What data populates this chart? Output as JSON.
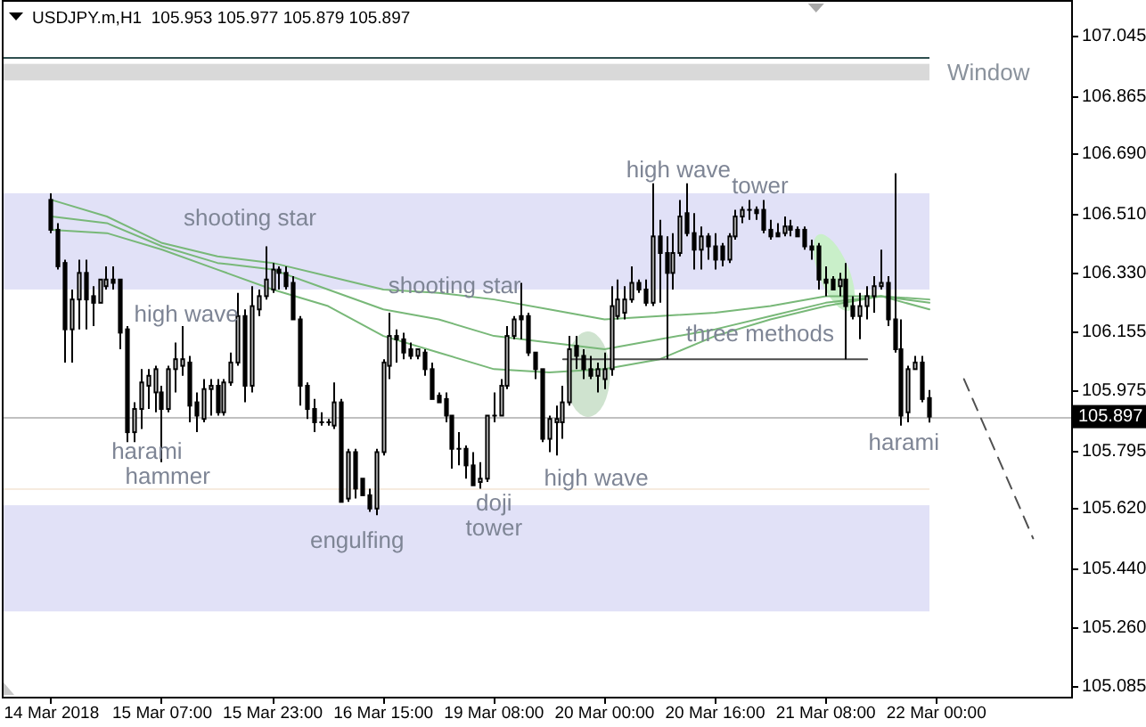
{
  "chart_data": {
    "type": "candlestick",
    "title": "USDJPY.m,H1  105.953 105.977 105.879 105.897",
    "categories": [
      "14 Mar 2018",
      null,
      null,
      null,
      null,
      null,
      null,
      null,
      null,
      null,
      null,
      null,
      null,
      null,
      null,
      null,
      "15 Mar 07:00",
      null,
      null,
      null,
      null,
      null,
      null,
      null,
      null,
      null,
      null,
      null,
      null,
      null,
      null,
      null,
      "15 Mar 23:00",
      null,
      null,
      null,
      null,
      null,
      null,
      null,
      null,
      null,
      null,
      null,
      null,
      null,
      null,
      null,
      "16 Mar 15:00",
      null,
      null,
      null,
      null,
      null,
      null,
      null,
      null,
      null,
      null,
      null,
      null,
      null,
      null,
      null,
      "19 Mar 08:00",
      null,
      null,
      null,
      null,
      null,
      null,
      null,
      null,
      null,
      null,
      null,
      null,
      null,
      null,
      null,
      "20 Mar 00:00",
      null,
      null,
      null,
      null,
      null,
      null,
      null,
      null,
      null,
      null,
      null,
      null,
      null,
      null,
      null,
      "20 Mar 16:00",
      null,
      null,
      null,
      null,
      null,
      null,
      null,
      null,
      null,
      null,
      null,
      null,
      null,
      null,
      null,
      "21 Mar 08:00",
      null,
      null,
      null,
      null,
      null,
      null,
      null,
      null,
      null,
      null,
      null,
      null,
      null,
      null,
      null,
      "22 Mar 00:00",
      null,
      null,
      null,
      null,
      null,
      null,
      null,
      null,
      null,
      null,
      null,
      null,
      null,
      null,
      null,
      null,
      null,
      null,
      null
    ],
    "ohlc": [
      [
        106.55,
        106.57,
        106.45,
        106.46
      ],
      [
        106.46,
        106.48,
        106.34,
        106.35
      ],
      [
        106.36,
        106.37,
        106.06,
        106.16
      ],
      [
        106.16,
        106.28,
        106.06,
        106.25
      ],
      [
        106.25,
        106.37,
        106.16,
        106.33
      ],
      [
        106.33,
        106.37,
        106.16,
        106.25
      ],
      [
        106.26,
        106.29,
        106.17,
        106.24
      ],
      [
        106.24,
        106.31,
        106.24,
        106.31
      ],
      [
        106.29,
        106.35,
        106.28,
        106.31
      ],
      [
        106.31,
        106.35,
        106.28,
        106.3
      ],
      [
        106.31,
        106.31,
        106.1,
        106.15
      ],
      [
        106.16,
        106.17,
        105.82,
        105.85
      ],
      [
        105.85,
        105.94,
        105.82,
        105.92
      ],
      [
        105.92,
        106.04,
        105.86,
        106.0
      ],
      [
        105.99,
        106.04,
        105.92,
        106.02
      ],
      [
        105.97,
        106.05,
        105.91,
        106.04
      ],
      [
        105.97,
        105.99,
        105.76,
        105.92
      ],
      [
        105.92,
        106.05,
        105.91,
        106.04
      ],
      [
        106.04,
        106.12,
        105.97,
        106.07
      ],
      [
        106.05,
        106.17,
        106.02,
        106.07
      ],
      [
        106.06,
        106.08,
        105.88,
        105.93
      ],
      [
        105.94,
        105.97,
        105.85,
        105.9
      ],
      [
        105.89,
        106.01,
        105.88,
        105.98
      ],
      [
        105.98,
        106.01,
        105.9,
        105.99
      ],
      [
        105.99,
        106.01,
        105.9,
        105.91
      ],
      [
        105.91,
        106.01,
        105.9,
        106.0
      ],
      [
        106.0,
        106.09,
        105.99,
        106.06
      ],
      [
        106.06,
        106.27,
        106.05,
        106.2
      ],
      [
        106.2,
        106.22,
        105.94,
        105.99
      ],
      [
        105.99,
        106.29,
        105.97,
        106.23
      ],
      [
        106.22,
        106.28,
        106.2,
        106.26
      ],
      [
        106.26,
        106.41,
        106.25,
        106.31
      ],
      [
        106.28,
        106.36,
        106.27,
        106.34
      ],
      [
        106.34,
        106.35,
        106.28,
        106.33
      ],
      [
        106.33,
        106.35,
        106.28,
        106.29
      ],
      [
        106.3,
        106.32,
        106.19,
        106.19
      ],
      [
        106.19,
        106.2,
        105.93,
        105.99
      ],
      [
        105.99,
        106.0,
        105.89,
        105.92
      ],
      [
        105.92,
        105.95,
        105.85,
        105.88
      ],
      [
        105.88,
        105.91,
        105.87,
        105.88
      ],
      [
        105.88,
        105.89,
        105.87,
        105.88
      ],
      [
        105.87,
        106.0,
        105.86,
        105.94
      ],
      [
        105.94,
        105.95,
        105.64,
        105.64
      ],
      [
        105.65,
        105.8,
        105.64,
        105.79
      ],
      [
        105.79,
        105.8,
        105.65,
        105.68
      ],
      [
        105.71,
        105.71,
        105.66,
        105.66
      ],
      [
        105.66,
        105.68,
        105.61,
        105.62
      ],
      [
        105.62,
        105.8,
        105.6,
        105.79
      ],
      [
        105.79,
        106.07,
        105.78,
        106.06
      ],
      [
        106.05,
        106.21,
        106.01,
        106.14
      ],
      [
        106.14,
        106.16,
        106.06,
        106.13
      ],
      [
        106.13,
        106.15,
        106.07,
        106.09
      ],
      [
        106.1,
        106.12,
        106.07,
        106.08
      ],
      [
        106.08,
        106.1,
        106.07,
        106.1
      ],
      [
        106.09,
        106.1,
        106.02,
        106.04
      ],
      [
        106.04,
        106.06,
        105.95,
        105.95
      ],
      [
        105.96,
        105.97,
        105.94,
        105.94
      ],
      [
        105.95,
        105.97,
        105.88,
        105.9
      ],
      [
        105.9,
        105.9,
        105.74,
        105.8
      ],
      [
        105.8,
        105.85,
        105.75,
        105.8
      ],
      [
        105.8,
        105.81,
        105.71,
        105.75
      ],
      [
        105.75,
        105.79,
        105.69,
        105.69
      ],
      [
        105.7,
        105.76,
        105.68,
        105.71
      ],
      [
        105.71,
        105.9,
        105.7,
        105.9
      ],
      [
        105.9,
        105.97,
        105.88,
        105.9
      ],
      [
        105.9,
        106.01,
        105.9,
        105.99
      ],
      [
        105.99,
        106.17,
        105.98,
        106.14
      ],
      [
        106.14,
        106.2,
        106.13,
        106.19
      ],
      [
        106.2,
        106.3,
        106.13,
        106.19
      ],
      [
        106.2,
        106.21,
        106.08,
        106.09
      ],
      [
        106.09,
        106.09,
        106.01,
        106.04
      ],
      [
        106.04,
        106.04,
        105.82,
        105.83
      ],
      [
        105.83,
        105.9,
        105.79,
        105.89
      ],
      [
        105.88,
        105.93,
        105.78,
        105.89
      ],
      [
        105.88,
        105.99,
        105.83,
        105.94
      ],
      [
        105.94,
        106.14,
        105.93,
        106.1
      ],
      [
        106.11,
        106.14,
        106.04,
        106.08
      ],
      [
        106.08,
        106.1,
        106.01,
        106.04
      ],
      [
        106.04,
        106.08,
        106.01,
        106.02
      ],
      [
        106.02,
        106.06,
        105.97,
        106.04
      ],
      [
        106.01,
        106.09,
        105.98,
        106.04
      ],
      [
        106.04,
        106.29,
        106.02,
        106.23
      ],
      [
        106.2,
        106.31,
        106.19,
        106.25
      ],
      [
        106.21,
        106.29,
        106.19,
        106.25
      ],
      [
        106.25,
        106.35,
        106.24,
        106.3
      ],
      [
        106.3,
        106.31,
        106.27,
        106.28
      ],
      [
        106.28,
        106.31,
        106.23,
        106.24
      ],
      [
        106.24,
        106.6,
        106.23,
        106.44
      ],
      [
        106.44,
        106.49,
        106.24,
        106.39
      ],
      [
        106.39,
        106.44,
        106.07,
        106.33
      ],
      [
        106.33,
        106.45,
        106.28,
        106.39
      ],
      [
        106.39,
        106.55,
        106.38,
        106.5
      ],
      [
        106.51,
        106.6,
        106.44,
        106.45
      ],
      [
        106.45,
        106.51,
        106.34,
        106.4
      ],
      [
        106.4,
        106.47,
        106.34,
        106.44
      ],
      [
        106.44,
        106.45,
        106.37,
        106.41
      ],
      [
        106.41,
        106.45,
        106.34,
        106.37
      ],
      [
        106.41,
        106.42,
        106.35,
        106.37
      ],
      [
        106.37,
        106.45,
        106.36,
        106.44
      ],
      [
        106.44,
        106.52,
        106.43,
        106.5
      ],
      [
        106.5,
        106.53,
        106.48,
        106.52
      ],
      [
        106.52,
        106.55,
        106.49,
        106.52
      ],
      [
        106.52,
        106.53,
        106.49,
        106.51
      ],
      [
        106.52,
        106.55,
        106.45,
        106.46
      ],
      [
        106.46,
        106.49,
        106.43,
        106.44
      ],
      [
        106.45,
        106.48,
        106.44,
        106.44
      ],
      [
        106.45,
        106.5,
        106.44,
        106.47
      ],
      [
        106.47,
        106.49,
        106.44,
        106.46
      ],
      [
        106.46,
        106.47,
        106.44,
        106.44
      ],
      [
        106.46,
        106.47,
        106.4,
        106.41
      ],
      [
        106.41,
        106.43,
        106.37,
        106.4
      ],
      [
        106.41,
        106.42,
        106.28,
        106.31
      ],
      [
        106.31,
        106.35,
        106.26,
        106.3
      ],
      [
        106.31,
        106.32,
        106.28,
        106.28
      ],
      [
        106.29,
        106.33,
        106.26,
        106.31
      ],
      [
        106.31,
        106.36,
        106.07,
        106.23
      ],
      [
        106.23,
        106.26,
        106.19,
        106.2
      ],
      [
        106.2,
        106.27,
        106.13,
        106.23
      ],
      [
        106.23,
        106.29,
        106.19,
        106.26
      ],
      [
        106.26,
        106.32,
        106.21,
        106.29
      ],
      [
        106.29,
        106.4,
        106.28,
        106.3
      ],
      [
        106.3,
        106.32,
        106.17,
        106.19
      ],
      [
        106.19,
        106.63,
        106.09,
        106.1
      ],
      [
        106.1,
        106.19,
        105.87,
        105.9
      ],
      [
        105.91,
        106.05,
        105.88,
        106.04
      ],
      [
        106.04,
        106.08,
        106.04,
        106.06
      ],
      [
        106.06,
        106.08,
        105.94,
        105.95
      ],
      [
        105.953,
        105.977,
        105.879,
        105.897
      ],
      null,
      null,
      null,
      null,
      null,
      null,
      null,
      null,
      null,
      null,
      null,
      null,
      null,
      null,
      null,
      null,
      null,
      null,
      null,
      null
    ],
    "series": [
      {
        "type": "line",
        "color": "#78b878",
        "values": [
          106.55,
          null,
          null,
          null,
          null,
          null,
          null,
          null,
          106.5,
          null,
          null,
          null,
          null,
          null,
          null,
          null,
          106.42,
          null,
          null,
          null,
          null,
          null,
          null,
          null,
          106.38,
          null,
          null,
          null,
          null,
          null,
          null,
          null,
          106.36,
          null,
          null,
          null,
          null,
          null,
          null,
          null,
          106.32,
          null,
          null,
          null,
          null,
          null,
          null,
          null,
          106.28,
          null,
          null,
          null,
          null,
          null,
          null,
          null,
          106.27,
          null,
          null,
          null,
          null,
          null,
          null,
          null,
          106.25,
          null,
          null,
          null,
          null,
          null,
          null,
          null,
          106.22,
          null,
          null,
          null,
          null,
          null,
          null,
          null,
          106.19,
          null,
          null,
          null,
          null,
          null,
          null,
          null,
          106.2,
          null,
          null,
          null,
          null,
          null,
          null,
          null,
          106.21,
          null,
          null,
          null,
          null,
          null,
          null,
          null,
          106.23,
          null,
          null,
          null,
          null,
          null,
          null,
          null,
          106.26,
          null,
          null,
          null,
          null,
          null,
          null,
          null,
          106.26,
          null,
          null,
          null,
          null,
          null,
          null,
          106.22,
          null,
          null,
          null,
          null,
          null,
          null,
          null,
          null,
          null,
          null,
          null,
          null,
          null,
          null,
          null,
          null,
          null,
          null,
          null,
          null
        ]
      },
      {
        "type": "line",
        "color": "#78b878",
        "values": [
          106.5,
          null,
          null,
          null,
          null,
          null,
          null,
          null,
          106.48,
          null,
          null,
          null,
          null,
          null,
          null,
          null,
          106.41,
          null,
          null,
          null,
          null,
          null,
          null,
          null,
          106.36,
          null,
          null,
          null,
          null,
          null,
          null,
          null,
          106.34,
          null,
          null,
          null,
          null,
          null,
          null,
          null,
          106.28,
          null,
          null,
          null,
          null,
          null,
          null,
          null,
          106.22,
          null,
          null,
          null,
          null,
          null,
          null,
          null,
          106.19,
          null,
          null,
          null,
          null,
          null,
          null,
          null,
          106.14,
          null,
          null,
          null,
          null,
          null,
          null,
          null,
          106.12,
          null,
          null,
          null,
          null,
          null,
          null,
          null,
          106.1,
          null,
          null,
          null,
          null,
          null,
          null,
          null,
          106.13,
          null,
          null,
          null,
          null,
          null,
          null,
          null,
          106.16,
          null,
          null,
          null,
          null,
          null,
          null,
          null,
          106.2,
          null,
          null,
          null,
          null,
          null,
          null,
          null,
          106.24,
          null,
          null,
          null,
          null,
          null,
          null,
          null,
          106.26,
          null,
          null,
          null,
          null,
          null,
          null,
          106.24,
          null,
          null,
          null,
          null,
          null,
          null,
          null,
          null,
          null,
          null,
          null,
          null,
          null,
          null,
          null,
          null,
          null,
          null,
          null,
          null
        ]
      },
      {
        "type": "line",
        "color": "#78b878",
        "values": [
          106.46,
          null,
          null,
          null,
          null,
          null,
          null,
          null,
          106.45,
          null,
          null,
          null,
          null,
          null,
          null,
          null,
          106.4,
          null,
          null,
          null,
          null,
          null,
          null,
          null,
          106.34,
          null,
          null,
          null,
          null,
          null,
          null,
          null,
          106.28,
          null,
          null,
          null,
          null,
          null,
          null,
          null,
          106.23,
          null,
          null,
          null,
          null,
          null,
          null,
          null,
          106.14,
          null,
          null,
          null,
          null,
          null,
          null,
          null,
          106.09,
          null,
          null,
          null,
          null,
          null,
          null,
          null,
          106.04,
          null,
          null,
          null,
          null,
          null,
          null,
          null,
          106.03,
          null,
          null,
          null,
          null,
          null,
          null,
          null,
          106.04,
          null,
          null,
          null,
          null,
          null,
          null,
          null,
          106.07,
          null,
          null,
          null,
          null,
          null,
          null,
          null,
          106.14,
          null,
          null,
          null,
          null,
          null,
          null,
          null,
          106.19,
          null,
          null,
          null,
          null,
          null,
          null,
          null,
          106.23,
          null,
          null,
          null,
          null,
          null,
          null,
          null,
          106.26,
          null,
          null,
          null,
          null,
          null,
          null,
          106.25,
          null,
          null,
          null,
          null,
          null,
          null,
          null,
          null,
          null,
          null,
          null,
          null,
          null,
          null,
          null,
          null,
          null,
          null,
          null,
          null
        ]
      },
      {
        "type": "line",
        "color": "#4a4a4a",
        "values": [
          null,
          null,
          null,
          null,
          null,
          null,
          null,
          null,
          null,
          null,
          null,
          null,
          null,
          null,
          null,
          null,
          null,
          null,
          null,
          null,
          null,
          null,
          null,
          null,
          null,
          null,
          null,
          null,
          null,
          null,
          null,
          null,
          null,
          null,
          null,
          null,
          null,
          null,
          null,
          null,
          null,
          null,
          null,
          null,
          null,
          null,
          null,
          null,
          null,
          null,
          null,
          null,
          null,
          null,
          null,
          null,
          null,
          null,
          null,
          null,
          null,
          null,
          null,
          null,
          null,
          null,
          null,
          null,
          null,
          null,
          null,
          null,
          null,
          null,
          106.07,
          null,
          null,
          null,
          null,
          null,
          null,
          null,
          null,
          null,
          null,
          null,
          null,
          null,
          null,
          null,
          null,
          null,
          null,
          null,
          null,
          null,
          null,
          null,
          null,
          null,
          null,
          null,
          null,
          null,
          null,
          null,
          null,
          null,
          null,
          null,
          null,
          null,
          null,
          null,
          null,
          null,
          null,
          null,
          106.07,
          null,
          null,
          null,
          null,
          null,
          null,
          null,
          null,
          null,
          null,
          null,
          null,
          null,
          null,
          null,
          null,
          null,
          null,
          null,
          null,
          null,
          null,
          null,
          null,
          null,
          null,
          null,
          null,
          null
        ]
      },
      {
        "type": "line",
        "color": "#505050",
        "line_style": "dashed",
        "values": [
          null,
          null,
          null,
          null,
          null,
          null,
          null,
          null,
          null,
          null,
          null,
          null,
          null,
          null,
          null,
          null,
          null,
          null,
          null,
          null,
          null,
          null,
          null,
          null,
          null,
          null,
          null,
          null,
          null,
          null,
          null,
          null,
          null,
          null,
          null,
          null,
          null,
          null,
          null,
          null,
          null,
          null,
          null,
          null,
          null,
          null,
          null,
          null,
          null,
          null,
          null,
          null,
          null,
          null,
          null,
          null,
          null,
          null,
          null,
          null,
          null,
          null,
          null,
          null,
          null,
          null,
          null,
          null,
          null,
          null,
          null,
          null,
          null,
          null,
          null,
          null,
          null,
          null,
          null,
          null,
          null,
          null,
          null,
          null,
          null,
          null,
          null,
          null,
          null,
          null,
          null,
          null,
          null,
          null,
          null,
          null,
          null,
          null,
          null,
          null,
          null,
          null,
          null,
          null,
          null,
          null,
          null,
          null,
          null,
          null,
          null,
          null,
          null,
          null,
          null,
          null,
          null,
          null,
          null,
          null,
          null,
          null,
          null,
          null,
          null,
          null,
          null,
          null,
          null,
          null,
          null,
          null,
          106.01,
          null,
          null,
          null,
          null,
          null,
          null,
          null,
          null,
          null,
          105.53,
          null,
          null,
          null,
          null,
          null
        ]
      }
    ],
    "ylim": [
      105.053,
      107.147
    ],
    "yticks": [
      107.045,
      106.865,
      {
        "value": 106.69,
        "label": "106.690"
      },
      {
        "value": 106.51,
        "label": "106.510"
      },
      {
        "value": 106.33,
        "label": "106.330"
      },
      106.155,
      105.975,
      105.795,
      {
        "value": 105.62,
        "label": "105.620"
      },
      {
        "value": 105.44,
        "label": "105.440"
      },
      {
        "value": 105.26,
        "label": "105.260"
      },
      105.085
    ],
    "bands": [
      {
        "axis": "y",
        "from": 106.91,
        "to": 106.96,
        "label": "Window",
        "color": "#d9d9d9"
      },
      {
        "axis": "y",
        "from": 106.28,
        "to": 106.57,
        "color": "#e1e1f7"
      },
      {
        "axis": "y",
        "from": 105.31,
        "to": 105.63,
        "color": "#e1e1f7"
      }
    ],
    "ref_lines": [
      {
        "axis": "y",
        "value": 106.98,
        "color": "#2f4f4f"
      },
      {
        "axis": "y",
        "value": 105.68,
        "color": "#f6ebdf"
      },
      {
        "axis": "y",
        "value": 105.897,
        "label": "105.897",
        "color": "#c0c0c0"
      }
    ],
    "annotations": [
      "shooting star",
      "high wave",
      "harami",
      "hammer",
      "engulfing",
      "shooting star",
      "doji",
      "tower",
      "high wave",
      "high wave",
      "tower",
      "three methods",
      "harami"
    ]
  }
}
